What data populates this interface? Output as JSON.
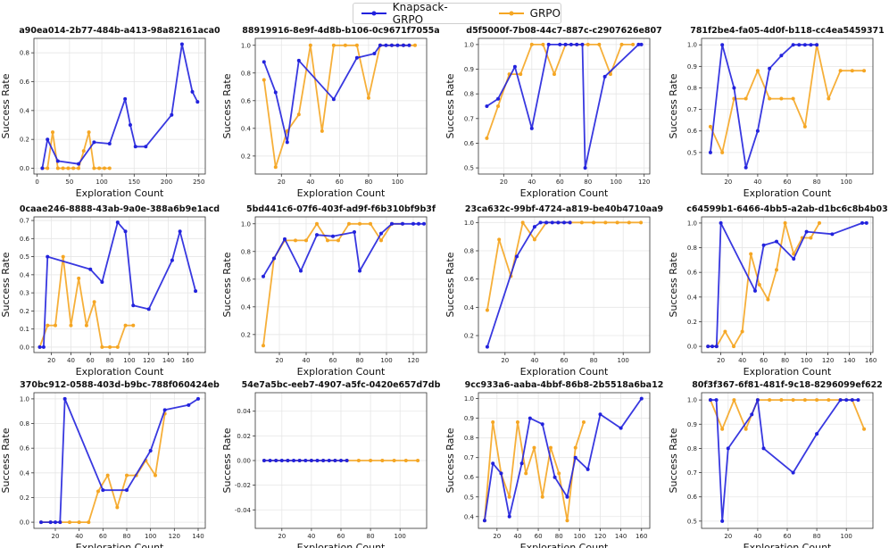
{
  "legend": {
    "items": [
      {
        "label": "Knapsack-GRPO",
        "color": "#2222dd"
      },
      {
        "label": "GRPO",
        "color": "#f5a623"
      }
    ]
  },
  "chart_data": [
    {
      "type": "line",
      "title": "a90ea014-2b77-484b-a413-98a82161aca0",
      "xlabel": "Exploration Count",
      "ylabel": "Success Rate",
      "xlim": [
        -5,
        260
      ],
      "ylim": [
        -0.04,
        0.9
      ],
      "xticks": [
        0,
        50,
        100,
        150,
        200,
        250
      ],
      "yticks": [
        0.0,
        0.2,
        0.4,
        0.6,
        0.8
      ],
      "series": [
        {
          "name": "Knapsack-GRPO",
          "x": [
            8,
            16,
            32,
            64,
            88,
            112,
            136,
            144,
            152,
            168,
            208,
            224,
            240,
            248
          ],
          "y": [
            0.0,
            0.2,
            0.05,
            0.03,
            0.18,
            0.17,
            0.48,
            0.3,
            0.15,
            0.15,
            0.37,
            0.86,
            0.53,
            0.46
          ]
        },
        {
          "name": "GRPO",
          "x": [
            8,
            16,
            24,
            32,
            40,
            48,
            56,
            64,
            72,
            80,
            88,
            96,
            104,
            112
          ],
          "y": [
            0.0,
            0.0,
            0.25,
            0.0,
            0.0,
            0.0,
            0.0,
            0.0,
            0.12,
            0.25,
            0.0,
            0.0,
            0.0,
            0.0
          ]
        }
      ]
    },
    {
      "type": "line",
      "title": "88919916-8e9f-4d8b-b106-0c9671f7055a",
      "xlabel": "Exploration Count",
      "ylabel": "Success Rate",
      "xlim": [
        2,
        120
      ],
      "ylim": [
        0.07,
        1.05
      ],
      "xticks": [
        20,
        40,
        60,
        80,
        100
      ],
      "yticks": [
        0.2,
        0.4,
        0.6,
        0.8,
        1.0
      ],
      "series": [
        {
          "name": "Knapsack-GRPO",
          "x": [
            8,
            16,
            24,
            32,
            56,
            72,
            84,
            88,
            92,
            96,
            100,
            104,
            108
          ],
          "y": [
            0.88,
            0.66,
            0.3,
            0.89,
            0.61,
            0.91,
            0.94,
            1.0,
            1.0,
            1.0,
            1.0,
            1.0,
            1.0
          ]
        },
        {
          "name": "GRPO",
          "x": [
            8,
            16,
            24,
            32,
            40,
            48,
            56,
            64,
            72,
            80,
            88,
            96,
            104,
            112
          ],
          "y": [
            0.75,
            0.12,
            0.38,
            0.5,
            1.0,
            0.38,
            1.0,
            1.0,
            1.0,
            0.62,
            1.0,
            1.0,
            1.0,
            1.0
          ]
        }
      ]
    },
    {
      "type": "line",
      "title": "d5f5000f-7b08-44c7-887c-c2907626e807",
      "xlabel": "Exploration Count",
      "ylabel": "Success Rate",
      "xlim": [
        2,
        124
      ],
      "ylim": [
        0.475,
        1.025
      ],
      "xticks": [
        20,
        40,
        60,
        80,
        100,
        120
      ],
      "yticks": [
        0.5,
        0.6,
        0.7,
        0.8,
        0.9,
        1.0
      ],
      "series": [
        {
          "name": "Knapsack-GRPO",
          "x": [
            8,
            16,
            28,
            40,
            52,
            60,
            64,
            68,
            72,
            76,
            78,
            92,
            116,
            118
          ],
          "y": [
            0.75,
            0.78,
            0.91,
            0.66,
            1.0,
            1.0,
            1.0,
            1.0,
            1.0,
            1.0,
            0.5,
            0.87,
            1.0,
            1.0
          ]
        },
        {
          "name": "GRPO",
          "x": [
            8,
            16,
            24,
            32,
            40,
            48,
            56,
            64,
            72,
            80,
            88,
            96,
            104,
            112
          ],
          "y": [
            0.62,
            0.75,
            0.88,
            0.88,
            1.0,
            1.0,
            0.88,
            1.0,
            1.0,
            1.0,
            1.0,
            0.88,
            1.0,
            1.0
          ]
        }
      ]
    },
    {
      "type": "line",
      "title": "781f2be4-fa05-4d0f-b118-cc4ea5459371",
      "xlabel": "Exploration Count",
      "ylabel": "Success Rate",
      "xlim": [
        2,
        118
      ],
      "ylim": [
        0.4,
        1.03
      ],
      "xticks": [
        20,
        40,
        60,
        80,
        100
      ],
      "yticks": [
        0.5,
        0.6,
        0.7,
        0.8,
        0.9,
        1.0
      ],
      "series": [
        {
          "name": "Knapsack-GRPO",
          "x": [
            8,
            16,
            24,
            32,
            40,
            48,
            56,
            64,
            68,
            72,
            76,
            80
          ],
          "y": [
            0.5,
            1.0,
            0.8,
            0.43,
            0.6,
            0.89,
            0.95,
            1.0,
            1.0,
            1.0,
            1.0,
            1.0
          ]
        },
        {
          "name": "GRPO",
          "x": [
            8,
            16,
            24,
            32,
            40,
            48,
            56,
            64,
            72,
            80,
            88,
            96,
            104,
            112
          ],
          "y": [
            0.62,
            0.5,
            0.75,
            0.75,
            0.88,
            0.75,
            0.75,
            0.75,
            0.62,
            1.0,
            0.75,
            0.88,
            0.88,
            0.88
          ]
        }
      ]
    },
    {
      "type": "line",
      "title": "0caae246-8888-43ab-9a0e-388a6b9e1acd",
      "xlabel": "Exploration Count",
      "ylabel": "Success Rate",
      "xlim": [
        2,
        178
      ],
      "ylim": [
        -0.03,
        0.72
      ],
      "xticks": [
        20,
        40,
        60,
        80,
        100,
        120,
        140,
        160
      ],
      "yticks": [
        0.0,
        0.1,
        0.2,
        0.3,
        0.4,
        0.5,
        0.6,
        0.7
      ],
      "series": [
        {
          "name": "Knapsack-GRPO",
          "x": [
            8,
            12,
            16,
            60,
            72,
            88,
            96,
            104,
            120,
            144,
            152,
            168
          ],
          "y": [
            0.0,
            0.0,
            0.5,
            0.43,
            0.36,
            0.69,
            0.64,
            0.23,
            0.21,
            0.48,
            0.64,
            0.31
          ]
        },
        {
          "name": "GRPO",
          "x": [
            8,
            16,
            24,
            32,
            40,
            48,
            56,
            64,
            72,
            80,
            88,
            96,
            104
          ],
          "y": [
            0.0,
            0.12,
            0.12,
            0.5,
            0.12,
            0.38,
            0.12,
            0.25,
            0.0,
            0.0,
            0.0,
            0.12,
            0.12
          ]
        }
      ]
    },
    {
      "type": "line",
      "title": "5bd441c6-07f6-403f-ad9f-f6b310bf9b3f",
      "xlabel": "Exploration Count",
      "ylabel": "Success Rate",
      "xlim": [
        2,
        130
      ],
      "ylim": [
        0.07,
        1.05
      ],
      "xticks": [
        20,
        40,
        60,
        80,
        100,
        120
      ],
      "yticks": [
        0.2,
        0.4,
        0.6,
        0.8,
        1.0
      ],
      "series": [
        {
          "name": "Knapsack-GRPO",
          "x": [
            8,
            16,
            24,
            36,
            48,
            60,
            76,
            80,
            96,
            104,
            112,
            120,
            124,
            128
          ],
          "y": [
            0.62,
            0.75,
            0.89,
            0.66,
            0.92,
            0.91,
            0.94,
            0.66,
            0.93,
            1.0,
            1.0,
            1.0,
            1.0,
            1.0
          ]
        },
        {
          "name": "GRPO",
          "x": [
            8,
            16,
            24,
            32,
            40,
            48,
            56,
            64,
            72,
            80,
            88,
            96,
            104,
            112
          ],
          "y": [
            0.12,
            0.75,
            0.88,
            0.88,
            0.88,
            1.0,
            0.88,
            0.88,
            1.0,
            1.0,
            1.0,
            0.88,
            1.0,
            1.0
          ]
        }
      ]
    },
    {
      "type": "line",
      "title": "23ca632c-99bf-4724-a819-be40b4710aa9",
      "xlabel": "Exploration Count",
      "ylabel": "Success Rate",
      "xlim": [
        2,
        118
      ],
      "ylim": [
        0.08,
        1.04
      ],
      "xticks": [
        20,
        40,
        60,
        80,
        100
      ],
      "yticks": [
        0.2,
        0.4,
        0.6,
        0.8,
        1.0
      ],
      "series": [
        {
          "name": "Knapsack-GRPO",
          "x": [
            8,
            28,
            40,
            44,
            48,
            52,
            56,
            60,
            64
          ],
          "y": [
            0.12,
            0.76,
            0.97,
            1.0,
            1.0,
            1.0,
            1.0,
            1.0,
            1.0
          ]
        },
        {
          "name": "GRPO",
          "x": [
            8,
            16,
            24,
            32,
            40,
            48,
            56,
            64,
            72,
            80,
            88,
            96,
            104,
            112
          ],
          "y": [
            0.38,
            0.88,
            0.62,
            1.0,
            0.88,
            1.0,
            1.0,
            1.0,
            1.0,
            1.0,
            1.0,
            1.0,
            1.0,
            1.0
          ]
        }
      ]
    },
    {
      "type": "line",
      "title": "c64599b1-6466-4bb5-a2ab-d1bc6c8b4b03",
      "xlabel": "Exploration Count",
      "ylabel": "Success Rate",
      "xlim": [
        2,
        162
      ],
      "ylim": [
        -0.05,
        1.05
      ],
      "xticks": [
        20,
        40,
        60,
        80,
        100,
        120,
        140,
        160
      ],
      "yticks": [
        0.0,
        0.2,
        0.4,
        0.6,
        0.8,
        1.0
      ],
      "series": [
        {
          "name": "Knapsack-GRPO",
          "x": [
            8,
            12,
            16,
            20,
            52,
            60,
            72,
            88,
            100,
            124,
            152,
            156
          ],
          "y": [
            0.0,
            0.0,
            0.0,
            1.0,
            0.45,
            0.82,
            0.85,
            0.71,
            0.93,
            0.91,
            1.0,
            1.0
          ]
        },
        {
          "name": "GRPO",
          "x": [
            8,
            16,
            24,
            32,
            40,
            48,
            56,
            64,
            72,
            80,
            88,
            96,
            104,
            112
          ],
          "y": [
            0.0,
            0.0,
            0.12,
            0.0,
            0.12,
            0.75,
            0.5,
            0.38,
            0.62,
            1.0,
            0.75,
            0.88,
            0.88,
            1.0
          ]
        }
      ]
    },
    {
      "type": "line",
      "title": "370bc912-0588-403d-b9bc-788f060424eb",
      "xlabel": "Exploration Count",
      "ylabel": "Success Rate",
      "xlim": [
        2,
        146
      ],
      "ylim": [
        -0.05,
        1.05
      ],
      "xticks": [
        20,
        40,
        60,
        80,
        100,
        120,
        140
      ],
      "yticks": [
        0.0,
        0.2,
        0.4,
        0.6,
        0.8,
        1.0
      ],
      "series": [
        {
          "name": "Knapsack-GRPO",
          "x": [
            8,
            16,
            20,
            24,
            28,
            60,
            80,
            100,
            112,
            132,
            140
          ],
          "y": [
            0.0,
            0.0,
            0.0,
            0.0,
            1.0,
            0.26,
            0.26,
            0.58,
            0.91,
            0.95,
            1.0
          ]
        },
        {
          "name": "GRPO",
          "x": [
            8,
            16,
            24,
            32,
            40,
            48,
            56,
            64,
            72,
            80,
            88,
            96,
            104,
            112
          ],
          "y": [
            0.0,
            0.0,
            0.0,
            0.0,
            0.0,
            0.0,
            0.25,
            0.38,
            0.12,
            0.38,
            0.38,
            0.5,
            0.38,
            0.88
          ]
        }
      ]
    },
    {
      "type": "line",
      "title": "54e7a5bc-eeb7-4907-a5fc-0420e657d7db",
      "xlabel": "Exploration Count",
      "ylabel": "Success Rate",
      "xlim": [
        2,
        118
      ],
      "ylim": [
        -0.055,
        0.055
      ],
      "xticks": [
        20,
        40,
        60,
        80,
        100
      ],
      "yticks": [
        -0.04,
        -0.02,
        0.0,
        0.02,
        0.04
      ],
      "series": [
        {
          "name": "Knapsack-GRPO",
          "x": [
            8,
            12,
            16,
            20,
            24,
            28,
            32,
            36,
            40,
            44,
            48,
            52,
            56,
            60,
            64
          ],
          "y": [
            0.0,
            0.0,
            0.0,
            0.0,
            0.0,
            0.0,
            0.0,
            0.0,
            0.0,
            0.0,
            0.0,
            0.0,
            0.0,
            0.0,
            0.0
          ]
        },
        {
          "name": "GRPO",
          "x": [
            8,
            16,
            24,
            32,
            40,
            48,
            56,
            64,
            72,
            80,
            88,
            96,
            104,
            112
          ],
          "y": [
            0.0,
            0.0,
            0.0,
            0.0,
            0.0,
            0.0,
            0.0,
            0.0,
            0.0,
            0.0,
            0.0,
            0.0,
            0.0,
            0.0
          ]
        }
      ]
    },
    {
      "type": "line",
      "title": "9cc933a6-aaba-4bbf-86b8-2b5518a6ba12",
      "xlabel": "Exploration Count",
      "ylabel": "Success Rate",
      "xlim": [
        2,
        168
      ],
      "ylim": [
        0.34,
        1.03
      ],
      "xticks": [
        20,
        40,
        60,
        80,
        100,
        120,
        140,
        160
      ],
      "yticks": [
        0.4,
        0.5,
        0.6,
        0.7,
        0.8,
        0.9,
        1.0
      ],
      "series": [
        {
          "name": "Knapsack-GRPO",
          "x": [
            8,
            16,
            24,
            32,
            44,
            52,
            64,
            76,
            88,
            96,
            108,
            120,
            140,
            160
          ],
          "y": [
            0.38,
            0.67,
            0.62,
            0.4,
            0.67,
            0.9,
            0.87,
            0.6,
            0.5,
            0.7,
            0.64,
            0.92,
            0.85,
            1.0
          ]
        },
        {
          "name": "GRPO",
          "x": [
            8,
            16,
            24,
            32,
            40,
            48,
            56,
            64,
            72,
            80,
            88,
            96,
            104
          ],
          "y": [
            0.38,
            0.88,
            0.62,
            0.5,
            0.88,
            0.62,
            0.75,
            0.5,
            0.75,
            0.62,
            0.38,
            0.75,
            0.88
          ]
        }
      ]
    },
    {
      "type": "line",
      "title": "80f3f367-6f81-481f-9c18-8296099ef622",
      "xlabel": "Exploration Count",
      "ylabel": "Success Rate",
      "xlim": [
        2,
        118
      ],
      "ylim": [
        0.47,
        1.03
      ],
      "xticks": [
        20,
        40,
        60,
        80,
        100
      ],
      "yticks": [
        0.5,
        0.6,
        0.7,
        0.8,
        0.9,
        1.0
      ],
      "series": [
        {
          "name": "Knapsack-GRPO",
          "x": [
            8,
            12,
            16,
            20,
            36,
            40,
            44,
            64,
            80,
            96,
            100,
            104,
            108
          ],
          "y": [
            1.0,
            1.0,
            0.5,
            0.8,
            0.94,
            1.0,
            0.8,
            0.7,
            0.86,
            1.0,
            1.0,
            1.0,
            1.0
          ]
        },
        {
          "name": "GRPO",
          "x": [
            8,
            16,
            24,
            32,
            40,
            48,
            56,
            64,
            72,
            80,
            88,
            96,
            104,
            112
          ],
          "y": [
            1.0,
            0.88,
            1.0,
            0.88,
            1.0,
            1.0,
            1.0,
            1.0,
            1.0,
            1.0,
            1.0,
            1.0,
            1.0,
            0.88
          ]
        }
      ]
    }
  ]
}
